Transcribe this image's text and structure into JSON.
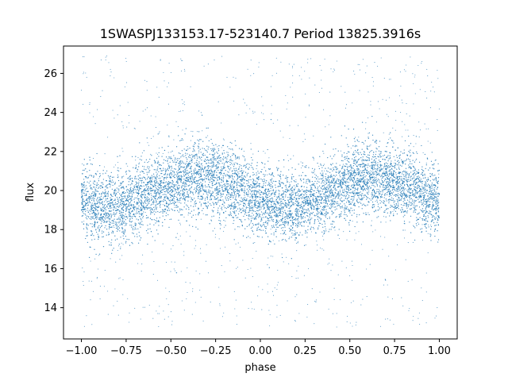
{
  "chart_data": {
    "type": "scatter",
    "title": "1SWASPJ133153.17-523140.7 Period 13825.3916s",
    "xlabel": "phase",
    "ylabel": "flux",
    "xlim": [
      -1.1,
      1.1
    ],
    "ylim": [
      12.4,
      27.4
    ],
    "xticks": [
      -1.0,
      -0.75,
      -0.5,
      -0.25,
      0.0,
      0.25,
      0.5,
      0.75,
      1.0
    ],
    "xtick_labels": [
      "−1.00",
      "−0.75",
      "−0.50",
      "−0.25",
      "0.00",
      "0.25",
      "0.50",
      "0.75",
      "1.00"
    ],
    "yticks": [
      14,
      16,
      18,
      20,
      22,
      24,
      26
    ],
    "ytick_labels": [
      "14",
      "16",
      "18",
      "20",
      "22",
      "24",
      "26"
    ],
    "grid": false,
    "legend": "none",
    "series": [
      {
        "color": "#1f77b4",
        "model": {
          "description_of_shape": "folded light curve, two cycles across phase -1 to 1",
          "x_range": [
            -1.0,
            1.0
          ],
          "phase_period": 1.0,
          "mean_flux": 19.9,
          "semi_amplitude": 0.75,
          "flux_at_maximum_phase": [
            -0.35,
            0.65
          ],
          "flux_at_minimum_phase": [
            -0.85,
            0.15
          ],
          "core_scatter_sd": 0.9,
          "outlier_range": [
            13.0,
            26.9
          ]
        }
      }
    ]
  }
}
